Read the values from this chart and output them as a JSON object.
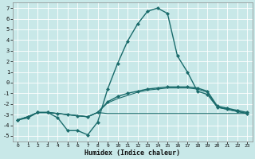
{
  "xlabel": "Humidex (Indice chaleur)",
  "xlim": [
    -0.5,
    23.5
  ],
  "ylim": [
    -5.5,
    7.5
  ],
  "xticks": [
    0,
    1,
    2,
    3,
    4,
    5,
    6,
    7,
    8,
    9,
    10,
    11,
    12,
    13,
    14,
    15,
    16,
    17,
    18,
    19,
    20,
    21,
    22,
    23
  ],
  "yticks": [
    -5,
    -4,
    -3,
    -2,
    -1,
    0,
    1,
    2,
    3,
    4,
    5,
    6,
    7
  ],
  "bg_color": "#c8e8e8",
  "grid_color": "#aad4d4",
  "line_color": "#1a6b6b",
  "lines": [
    {
      "x": [
        0,
        1,
        2,
        3,
        4,
        5,
        6,
        7,
        8,
        9,
        10,
        11,
        12,
        13,
        14,
        15,
        16,
        17,
        18,
        19,
        20,
        21,
        22,
        23
      ],
      "y": [
        -3.5,
        -3.3,
        -2.8,
        -2.8,
        -3.3,
        -4.5,
        -4.5,
        -4.9,
        -3.7,
        -0.6,
        1.8,
        3.9,
        5.5,
        6.7,
        7.0,
        6.5,
        2.5,
        1.0,
        -0.8,
        -1.1,
        -2.3,
        -2.5,
        -2.7,
        -2.9
      ],
      "marker": "D",
      "markersize": 2.0,
      "linewidth": 1.0
    },
    {
      "x": [
        0,
        1,
        2,
        3,
        4,
        5,
        6,
        7,
        8,
        9,
        10,
        11,
        12,
        13,
        14,
        15,
        16,
        17,
        18,
        19,
        20,
        21,
        22,
        23
      ],
      "y": [
        -3.5,
        -3.2,
        -2.8,
        -2.8,
        -2.9,
        -3.0,
        -3.1,
        -3.2,
        -2.8,
        -1.8,
        -1.3,
        -1.0,
        -0.8,
        -0.6,
        -0.5,
        -0.4,
        -0.4,
        -0.4,
        -0.5,
        -0.8,
        -2.2,
        -2.4,
        -2.6,
        -2.8
      ],
      "marker": "D",
      "markersize": 2.0,
      "linewidth": 1.0
    },
    {
      "x": [
        0,
        1,
        2,
        3,
        4,
        5,
        6,
        7,
        8,
        9,
        10,
        11,
        12,
        13,
        14,
        15,
        16,
        17,
        18,
        19,
        20,
        21,
        22,
        23
      ],
      "y": [
        -3.5,
        -3.2,
        -2.8,
        -2.8,
        -2.9,
        -3.0,
        -3.1,
        -3.2,
        -2.8,
        -1.9,
        -1.5,
        -1.2,
        -0.9,
        -0.7,
        -0.6,
        -0.5,
        -0.5,
        -0.5,
        -0.6,
        -0.9,
        -2.3,
        -2.5,
        -2.7,
        -2.9
      ],
      "marker": null,
      "markersize": 0,
      "linewidth": 0.8
    },
    {
      "x": [
        0,
        1,
        2,
        3,
        4,
        5,
        6,
        7,
        8,
        9,
        10,
        11,
        12,
        13,
        14,
        15,
        16,
        17,
        18,
        19,
        20,
        21,
        22,
        23
      ],
      "y": [
        -3.5,
        -3.2,
        -2.8,
        -2.8,
        -2.9,
        -3.0,
        -3.1,
        -3.2,
        -2.8,
        -2.9,
        -2.9,
        -2.9,
        -2.9,
        -2.9,
        -2.9,
        -2.9,
        -2.9,
        -2.9,
        -2.9,
        -2.9,
        -2.9,
        -2.9,
        -2.9,
        -2.9
      ],
      "marker": null,
      "markersize": 0,
      "linewidth": 0.8
    }
  ]
}
